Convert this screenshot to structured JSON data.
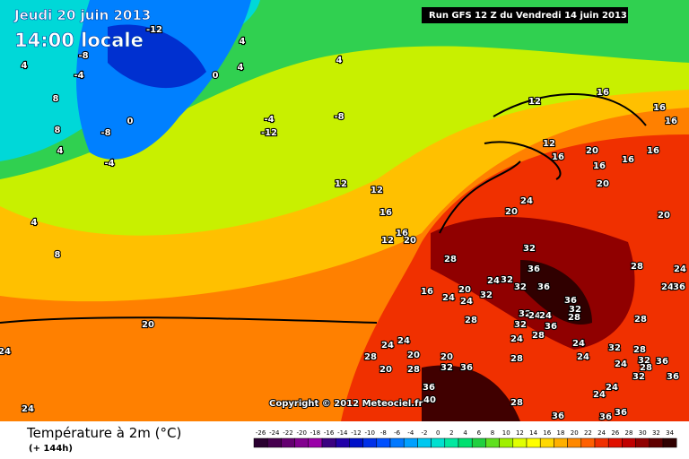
{
  "header": {
    "date": "Jeudi 20 juin 2013",
    "time": "14:00 locale",
    "run": "Run GFS 12 Z du Vendredi 14 juin 2013"
  },
  "copyright": "Copyright © 2012 Meteociel.fr",
  "footer": {
    "title": "Température à 2m (°C)",
    "lead": "(+ 144h)"
  },
  "scale": {
    "ticks": [
      -26,
      -24,
      -22,
      -20,
      -18,
      -16,
      -14,
      -12,
      -10,
      -8,
      -6,
      -4,
      -2,
      0,
      2,
      4,
      6,
      8,
      10,
      12,
      14,
      16,
      18,
      20,
      22,
      24,
      26,
      28,
      30,
      32,
      34
    ],
    "colors": [
      "#2a0030",
      "#46004f",
      "#640070",
      "#82008f",
      "#9a00a8",
      "#3a0080",
      "#2000a8",
      "#0010c8",
      "#0030e8",
      "#0050ff",
      "#0078ff",
      "#00a0ff",
      "#00c8f0",
      "#00e0d0",
      "#00e8a0",
      "#00e070",
      "#20d040",
      "#60e020",
      "#a0f000",
      "#e0ff00",
      "#ffff00",
      "#ffd800",
      "#ffb000",
      "#ff8800",
      "#ff6000",
      "#f03000",
      "#e01000",
      "#c00000",
      "#900000",
      "#600000",
      "#300000"
    ]
  },
  "map_labels": [
    -12,
    -8,
    -4,
    4,
    0,
    4,
    4,
    4,
    8,
    8,
    4,
    -8,
    0,
    -4,
    -4,
    -12,
    -8,
    12,
    8,
    4,
    12,
    16,
    16,
    20,
    12,
    12,
    16,
    16,
    16,
    12,
    16,
    20,
    16,
    16,
    16,
    20,
    20,
    24,
    20,
    32,
    28,
    36,
    32,
    32,
    24,
    36,
    32,
    16,
    20,
    24,
    24,
    36,
    32,
    28,
    32,
    24,
    24,
    28,
    32,
    36,
    28,
    24,
    28,
    24,
    24,
    36,
    28,
    24,
    24,
    28,
    20,
    20,
    28,
    20,
    32,
    36,
    28,
    24,
    24,
    32,
    28,
    24,
    32,
    28,
    36,
    32,
    24,
    24,
    36,
    20,
    24,
    24,
    36,
    40,
    28,
    36,
    36,
    36
  ]
}
